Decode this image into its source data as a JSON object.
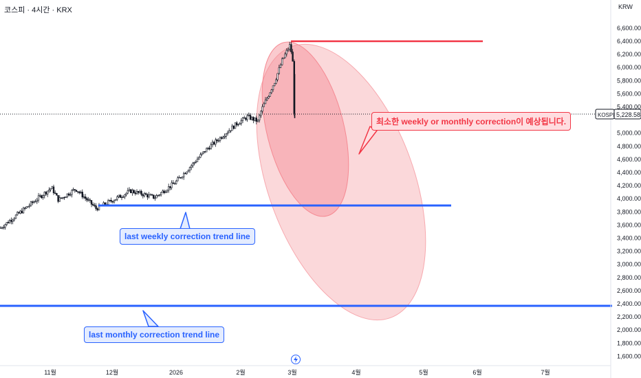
{
  "header": {
    "title": "코스피 · 4시간 · KRX"
  },
  "price_axis": {
    "currency": "KRW",
    "ticks": [
      "6,600.00",
      "6,400.00",
      "6,200.00",
      "6,000.00",
      "5,800.00",
      "5,600.00",
      "5,400.00",
      "5,000.00",
      "4,800.00",
      "4,600.00",
      "4,400.00",
      "4,200.00",
      "4,000.00",
      "3,800.00",
      "3,600.00",
      "3,400.00",
      "3,200.00",
      "3,000.00",
      "2,800.00",
      "2,600.00",
      "2,400.00",
      "2,200.00",
      "2,000.00",
      "1,800.00",
      "1,600.00"
    ],
    "symbol_badge": "KOSPI",
    "price_badge": "5,228.58"
  },
  "time_axis": {
    "ticks": [
      "11월",
      "12월",
      "2026",
      "2월",
      "3월",
      "4월",
      "5월",
      "6월",
      "7월"
    ]
  },
  "annotations": {
    "correction_expected": "최소한 weekly or monthly correction이 예상됩니다.",
    "weekly_trend": "last weekly correction trend line",
    "monthly_trend": "last monthly correction trend line"
  },
  "icons": {
    "events": "lightning-icon"
  },
  "colors": {
    "up": "#131722",
    "down": "#131722",
    "red": "#f23645",
    "blue": "#2962ff",
    "ellipse": "#f7a8ae"
  },
  "chart_data": {
    "type": "candlestick",
    "title": "코스피 · 4시간 · KRX",
    "ylabel": "KRW",
    "ylim": [
      1500,
      6750
    ],
    "last_price": 5228.58,
    "x_months": [
      "11월",
      "12월",
      "2026",
      "2월",
      "3월",
      "4월",
      "5월",
      "6월",
      "7월"
    ],
    "close_path": [
      {
        "x": "10월 중순",
        "y": 3550
      },
      {
        "x": "10월 말",
        "y": 4100
      },
      {
        "x": "11월 초",
        "y": 4200
      },
      {
        "x": "11월 중순",
        "y": 3950
      },
      {
        "x": "11월 말",
        "y": 3850
      },
      {
        "x": "12월 초",
        "y": 4100
      },
      {
        "x": "12월 중순",
        "y": 4050
      },
      {
        "x": "2026",
        "y": 4400
      },
      {
        "x": "1월 중순",
        "y": 4800
      },
      {
        "x": "2월 초",
        "y": 5100
      },
      {
        "x": "2월 중순",
        "y": 5400
      },
      {
        "x": "2월 말",
        "y": 6000
      },
      {
        "x": "3월 초",
        "y": 6350
      },
      {
        "x": "3월 초 (last)",
        "y": 5228.58
      }
    ],
    "lines": [
      {
        "name": "high line",
        "value": 6350
      },
      {
        "name": "last weekly correction trend line",
        "value": 3830
      },
      {
        "name": "last monthly correction trend line",
        "value": 2300
      }
    ]
  }
}
